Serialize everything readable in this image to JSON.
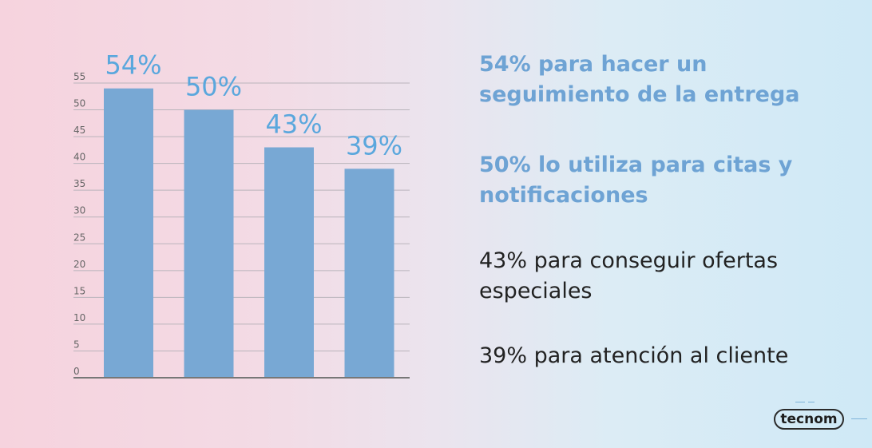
{
  "chart_data": {
    "type": "bar",
    "categories": [
      "",
      "",
      "",
      ""
    ],
    "values": [
      54,
      50,
      43,
      39
    ],
    "data_labels": [
      "54%",
      "50%",
      "43%",
      "39%"
    ],
    "ylim": [
      0,
      55
    ],
    "yticks": [
      "0",
      "5",
      "10",
      "15",
      "20",
      "25",
      "30",
      "35",
      "40",
      "45",
      "50",
      "55"
    ],
    "grid": true,
    "bar_color": "#78a8d4",
    "label_color": "#5aa7dd"
  },
  "stats": [
    {
      "text": "54% para hacer un seguimiento de la entrega"
    },
    {
      "text": "50% lo utiliza para citas y notificaciones"
    },
    {
      "text": "43% para conseguir ofertas especiales"
    },
    {
      "text": "39% para atención al cliente"
    }
  ],
  "logo": {
    "text": "tecnom"
  }
}
